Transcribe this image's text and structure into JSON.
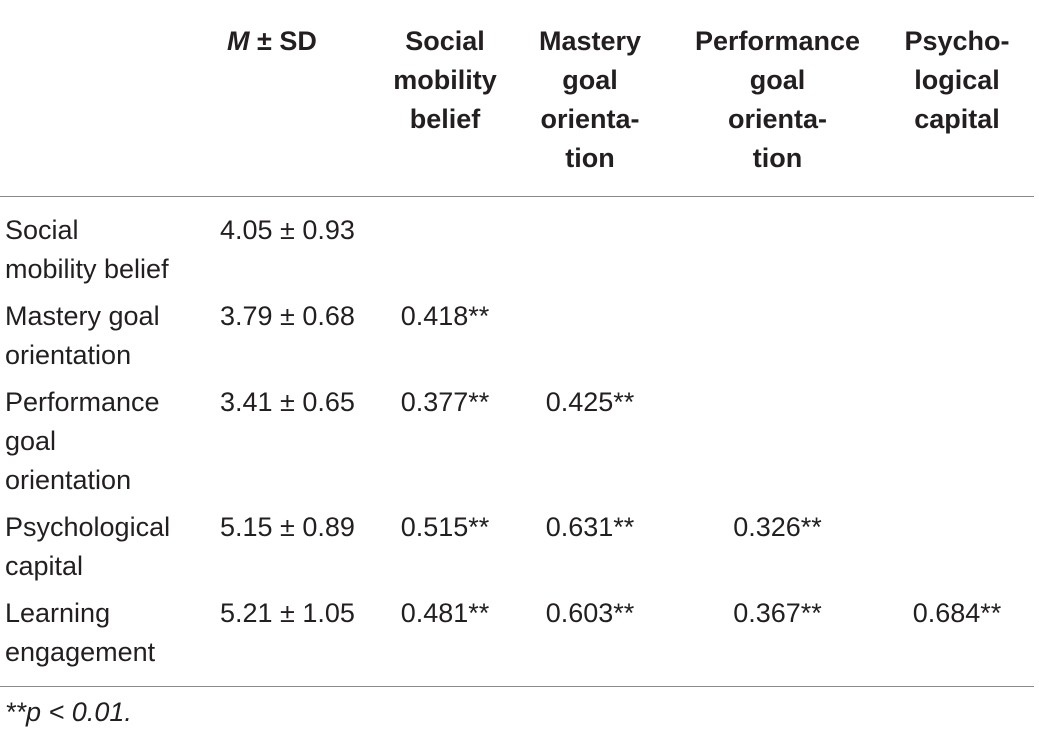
{
  "header": {
    "columns": [
      {
        "symbol": "M",
        "text": "± SD"
      },
      "Social\nmobility\nbelief",
      "Mastery\ngoal\norienta-\ntion",
      "Performance\ngoal\norienta-\ntion",
      "Psycho-\nlogical\ncapital"
    ]
  },
  "table": {
    "rows": [
      {
        "label": "Social\nmobility belief",
        "cells": [
          "4.05 ± 0.93"
        ]
      },
      {
        "label": "Mastery goal\norientation",
        "cells": [
          "3.79 ± 0.68",
          "0.418**"
        ]
      },
      {
        "label": "Performance\ngoal\norientation",
        "cells": [
          "3.41 ± 0.65",
          "0.377**",
          "0.425**"
        ]
      },
      {
        "label": "Psychological\ncapital",
        "cells": [
          "5.15 ± 0.89",
          "0.515**",
          "0.631**",
          "0.326**"
        ]
      },
      {
        "label": "Learning\nengagement",
        "cells": [
          "5.21 ± 1.05",
          "0.481**",
          "0.603**",
          "0.367**",
          "0.684**"
        ]
      }
    ]
  },
  "footnote": "**p < 0.01."
}
